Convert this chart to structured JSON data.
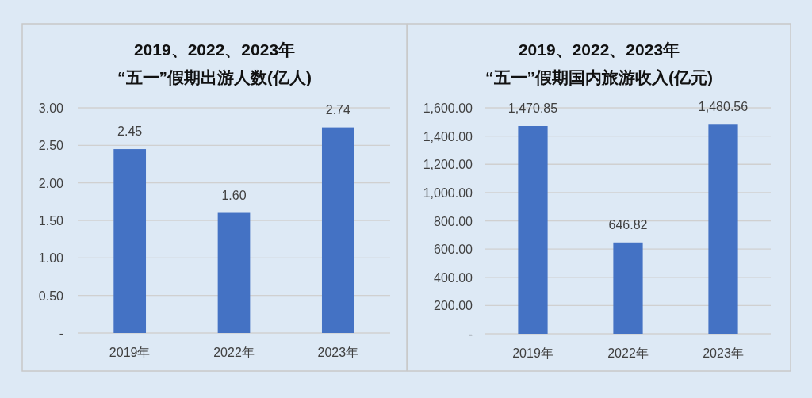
{
  "chart_data": [
    {
      "type": "bar",
      "title": "2019、2022、2023年",
      "subtitle": "“五一”假期出游人数(亿人)",
      "categories": [
        "2019年",
        "2022年",
        "2023年"
      ],
      "values": [
        2.45,
        1.6,
        2.74
      ],
      "value_labels": [
        "2.45",
        "1.60",
        "2.74"
      ],
      "color": "#4472c4",
      "ylim": [
        0,
        3
      ],
      "yticks": [
        {
          "value": 0,
          "label": "-"
        },
        {
          "value": 0.5,
          "label": "0.50"
        },
        {
          "value": 1,
          "label": "1.00"
        },
        {
          "value": 1.5,
          "label": "1.50"
        },
        {
          "value": 2,
          "label": "2.00"
        },
        {
          "value": 2.5,
          "label": "2.50"
        },
        {
          "value": 3,
          "label": "3.00"
        }
      ],
      "grid": "y"
    },
    {
      "type": "bar",
      "title": "2019、2022、2023年",
      "subtitle": "“五一”假期国内旅游收入(亿元)",
      "categories": [
        "2019年",
        "2022年",
        "2023年"
      ],
      "values": [
        1470.85,
        646.82,
        1480.56
      ],
      "value_labels": [
        "1,470.85",
        "646.82",
        "1,480.56"
      ],
      "color": "#4472c4",
      "ylim": [
        0,
        1600
      ],
      "yticks": [
        {
          "value": 0,
          "label": "-"
        },
        {
          "value": 200,
          "label": "200.00"
        },
        {
          "value": 400,
          "label": "400.00"
        },
        {
          "value": 600,
          "label": "600.00"
        },
        {
          "value": 800,
          "label": "800.00"
        },
        {
          "value": 1000,
          "label": "1,000.00"
        },
        {
          "value": 1200,
          "label": "1,200.00"
        },
        {
          "value": 1400,
          "label": "1,400.00"
        },
        {
          "value": 1600,
          "label": "1,600.00"
        }
      ],
      "grid": "y"
    }
  ]
}
